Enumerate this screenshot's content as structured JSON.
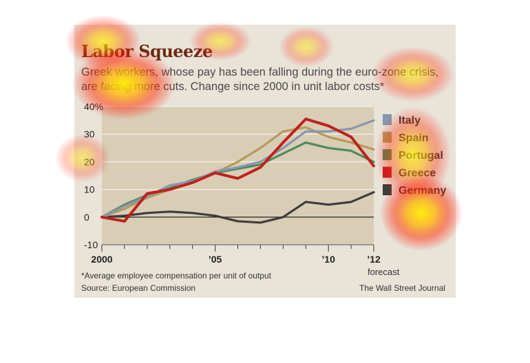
{
  "header": {
    "title": "Labor Squeeze",
    "subtitle": "Greek workers, whose pay has been falling during the euro-zone crisis, are facing more cuts. Change since 2000 in unit labor costs*"
  },
  "footer": {
    "footnote": "*Average employee compensation per unit of output",
    "source": "Source: European Commission",
    "publisher": "The Wall Street Journal"
  },
  "colors": {
    "panel": "#e9e3d8",
    "plot_area": "#d9cdb6",
    "grid": "#f2ede4"
  },
  "chart_data": {
    "type": "line",
    "x": [
      2000,
      2001,
      2002,
      2003,
      2004,
      2005,
      2006,
      2007,
      2008,
      2009,
      2010,
      2011,
      2012
    ],
    "xticks": [
      2000,
      2005,
      2010,
      2012
    ],
    "xtick_labels": [
      "2000",
      "’05",
      "’10",
      "’12"
    ],
    "xnote": "forecast",
    "ylim": [
      -10,
      40
    ],
    "yticks": [
      -10,
      0,
      10,
      20,
      30,
      40
    ],
    "ytick_labels": [
      "-10",
      "0",
      "10",
      "20",
      "30",
      "40%"
    ],
    "grid": true,
    "legend_position": "right",
    "series": [
      {
        "name": "Italy",
        "color": "#8597ad",
        "values": [
          0,
          4,
          7.5,
          11.5,
          13,
          16.5,
          18,
          20,
          25,
          31,
          31,
          32,
          35
        ]
      },
      {
        "name": "Spain",
        "color": "#b59a5c",
        "values": [
          0,
          3,
          7,
          10,
          13,
          16,
          20,
          25,
          31,
          32.5,
          29,
          27,
          24.5
        ]
      },
      {
        "name": "Portugal",
        "color": "#4f8a5c",
        "values": [
          0,
          4.5,
          8,
          10.5,
          13.5,
          16,
          17.5,
          19,
          23,
          27,
          25,
          24,
          20
        ]
      },
      {
        "name": "Greece",
        "color": "#c0201d",
        "values": [
          0,
          -1.5,
          8.5,
          10,
          12.5,
          16,
          14,
          18,
          27,
          35.5,
          33,
          29,
          18.5
        ]
      },
      {
        "name": "Germany",
        "color": "#3d3d3d",
        "values": [
          0,
          0.5,
          1.5,
          2,
          1.5,
          0.5,
          -1.5,
          -2,
          0,
          5.5,
          4.5,
          5.5,
          9
        ]
      }
    ]
  }
}
